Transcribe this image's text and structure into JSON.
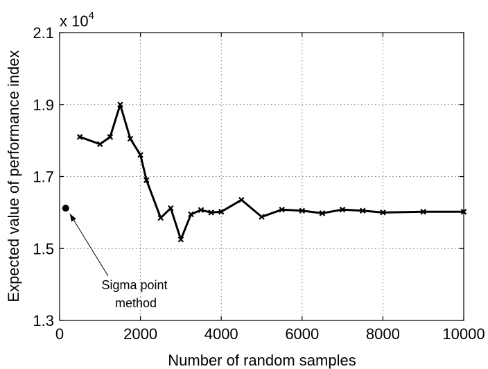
{
  "chart_data": {
    "type": "line",
    "xlabel": "Number of random samples",
    "ylabel": "Expected value of performance index",
    "y_multiplier_base": "x 10",
    "y_multiplier_exponent": "4",
    "xlim": [
      0,
      10000
    ],
    "ylim": [
      1.3,
      2.1
    ],
    "xticks": [
      0,
      2000,
      4000,
      6000,
      8000,
      10000
    ],
    "xtick_labels": [
      "0",
      "2000",
      "4000",
      "6000",
      "8000",
      "10000"
    ],
    "yticks": [
      1.3,
      1.5,
      1.7,
      1.9,
      2.1
    ],
    "ytick_labels": [
      "1.3",
      "1.5",
      "1.7",
      "1.9",
      "2.1"
    ],
    "grid": true,
    "series": [
      {
        "marker": "x",
        "color": "#000000",
        "x": [
          500,
          1000,
          1250,
          1500,
          1750,
          2000,
          2150,
          2500,
          2750,
          3000,
          3250,
          3500,
          3750,
          4000,
          4500,
          5000,
          5500,
          6000,
          6500,
          7000,
          7500,
          8000,
          9000,
          10000
        ],
        "y": [
          1.81,
          1.79,
          1.81,
          1.9,
          1.805,
          1.76,
          1.69,
          1.585,
          1.612,
          1.525,
          1.595,
          1.607,
          1.6,
          1.602,
          1.635,
          1.588,
          1.608,
          1.605,
          1.598,
          1.608,
          1.605,
          1.6,
          1.602,
          1.602
        ]
      }
    ],
    "points": [
      {
        "x": 150,
        "y": 1.612,
        "marker": "filled-circle",
        "color": "#000000"
      }
    ],
    "annotations": [
      {
        "text_lines": [
          "Sigma point",
          "method"
        ],
        "points_to": [
          150,
          1.612
        ]
      }
    ]
  }
}
